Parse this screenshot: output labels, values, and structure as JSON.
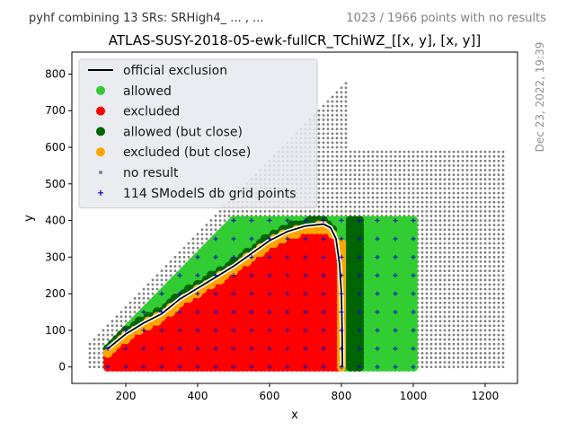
{
  "header": {
    "left_note": "pyhf combining 13 SRs: SRHigh4_ ... , ...",
    "right_note": "1023 / 1966 points with no results",
    "side_note": "Dec 23, 2022, 19:39"
  },
  "chart_data": {
    "type": "scatter",
    "title": "ATLAS-SUSY-2018-05-ewk-fullCR_TChiWZ_[[x, y], [x, y]]",
    "xlabel": "x",
    "ylabel": "y",
    "xlim": [
      50,
      1290
    ],
    "ylim": [
      -45,
      860
    ],
    "xticks": [
      200,
      400,
      600,
      800,
      1000,
      1200
    ],
    "yticks": [
      0,
      100,
      200,
      300,
      400,
      500,
      600,
      700,
      800
    ],
    "grid": false,
    "legend_position": "top-left",
    "legend": [
      {
        "label": "official exclusion",
        "kind": "line",
        "color": "#000000"
      },
      {
        "label": "allowed",
        "kind": "dot",
        "color": "#32cd32"
      },
      {
        "label": "excluded",
        "kind": "dot",
        "color": "#ff0000"
      },
      {
        "label": "allowed (but close)",
        "kind": "dot",
        "color": "#006400"
      },
      {
        "label": "excluded (but close)",
        "kind": "dot",
        "color": "#ffa500"
      },
      {
        "label": "no result",
        "kind": "small-dot",
        "color": "#808080"
      },
      {
        "label": "114 SModelS db grid points",
        "kind": "plus",
        "color": "#0000cc"
      }
    ],
    "series": [
      {
        "name": "allowed",
        "region": "computed",
        "color": "#32cd32"
      },
      {
        "name": "excluded",
        "region": "computed",
        "color": "#ff0000"
      },
      {
        "name": "allowed (but close)",
        "region": "computed",
        "color": "#006400"
      },
      {
        "name": "excluded (but close)",
        "region": "computed",
        "color": "#ffa500"
      },
      {
        "name": "no result",
        "region": "computed",
        "color": "#808080"
      }
    ],
    "exclusion_curve": [
      [
        150,
        50
      ],
      [
        200,
        90
      ],
      [
        250,
        120
      ],
      [
        300,
        145
      ],
      [
        350,
        185
      ],
      [
        400,
        215
      ],
      [
        450,
        245
      ],
      [
        500,
        275
      ],
      [
        550,
        310
      ],
      [
        600,
        345
      ],
      [
        650,
        370
      ],
      [
        700,
        385
      ],
      [
        750,
        390
      ],
      [
        770,
        380
      ],
      [
        785,
        350
      ],
      [
        795,
        280
      ],
      [
        800,
        200
      ],
      [
        802,
        100
      ],
      [
        803,
        0
      ]
    ],
    "db_grid_x": [
      150,
      200,
      250,
      300,
      350,
      400,
      450,
      500,
      550,
      600,
      650,
      700,
      750,
      800,
      850,
      900,
      950,
      1000
    ],
    "db_grid_y": [
      0,
      50,
      100,
      150,
      200,
      250,
      300,
      350,
      400
    ]
  }
}
